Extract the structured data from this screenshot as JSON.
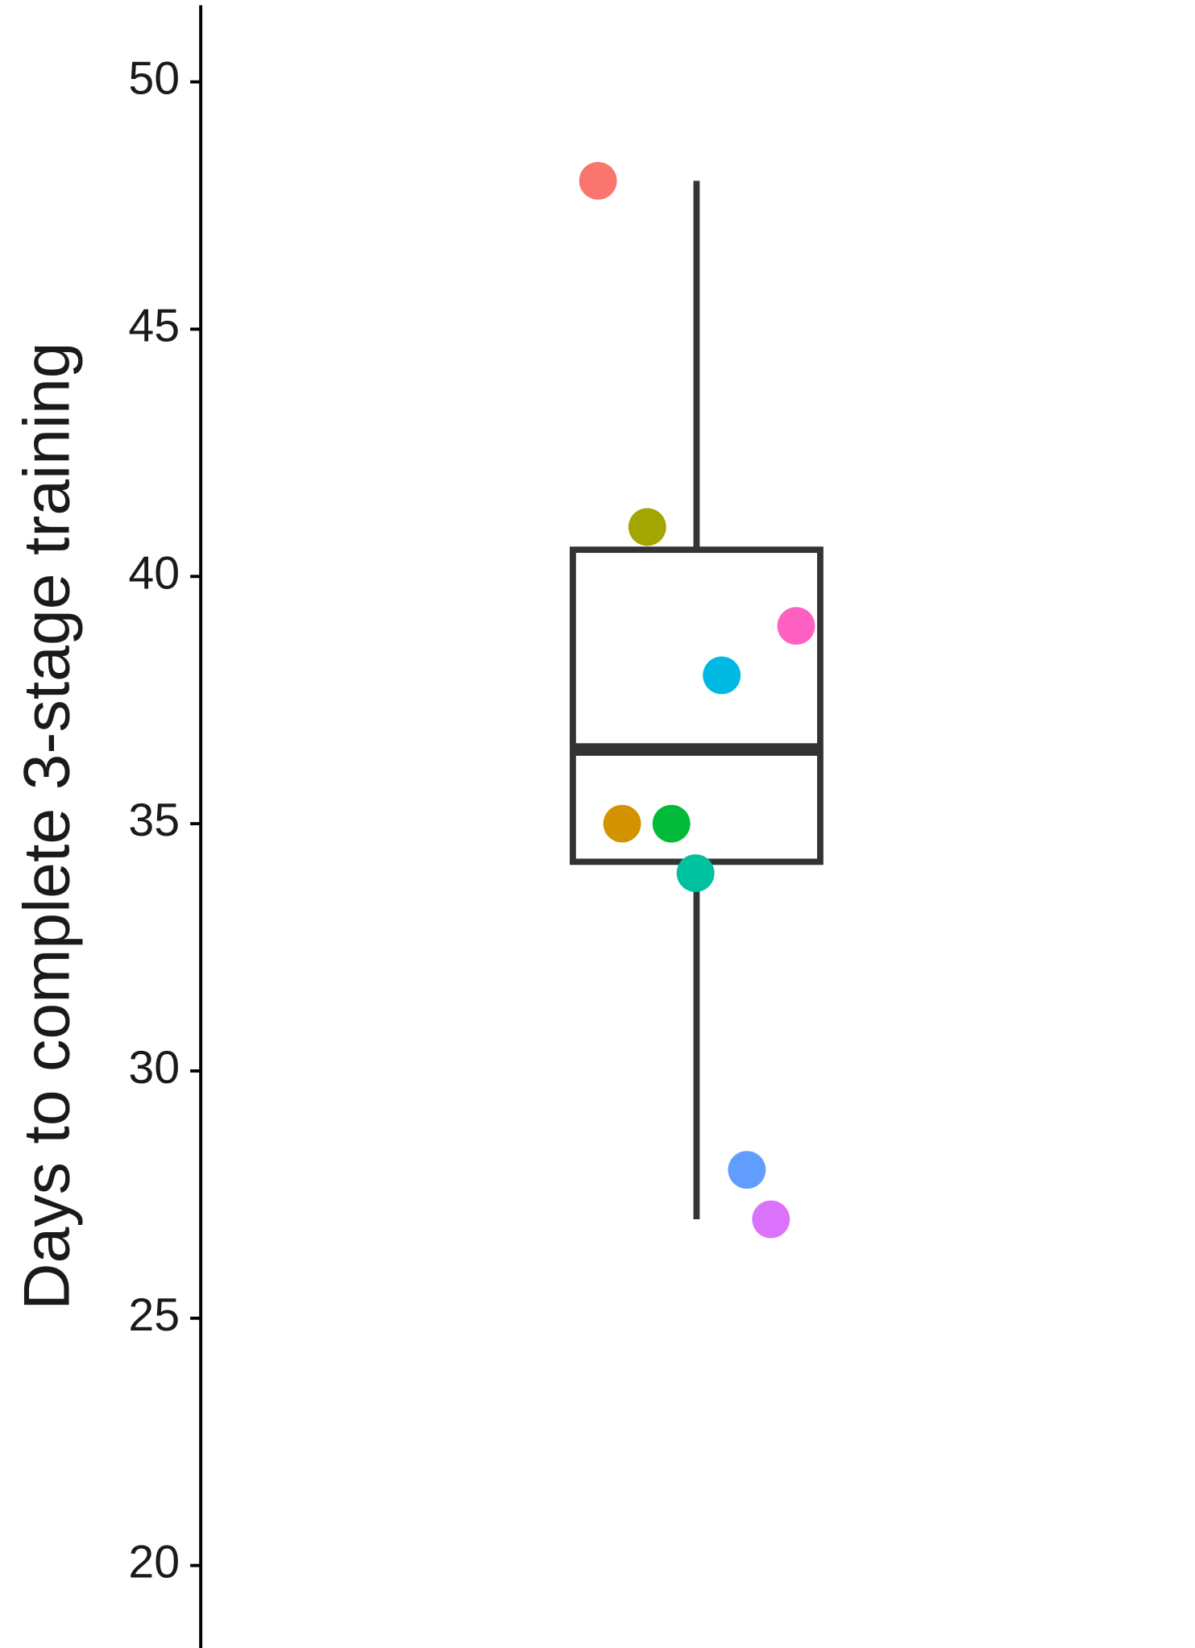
{
  "chart_data": {
    "type": "box",
    "ylabel": "Days to complete 3-stage training",
    "ylim": [
      17.95,
      51.55
    ],
    "yticks": [
      20,
      25,
      30,
      35,
      40,
      45,
      50
    ],
    "box": {
      "whisker_low": 27,
      "q1": 34.23,
      "median": 36.5,
      "q3": 40.54,
      "whisker_high": 48,
      "color": "#333333"
    },
    "points": {
      "values": [
        48,
        41,
        35,
        35,
        34,
        38,
        39,
        28,
        27
      ],
      "colors": [
        "#F8766D",
        "#A3A500",
        "#D39200",
        "#00BA38",
        "#00C19F",
        "#00B9E3",
        "#FF61C3",
        "#619CFF",
        "#DB72FB"
      ]
    }
  }
}
